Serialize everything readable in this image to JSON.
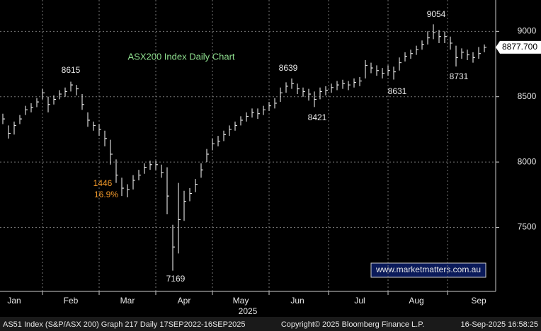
{
  "chart_data": {
    "type": "ohlc",
    "title": "ASX200 Index Daily Chart",
    "categories": [
      null,
      null,
      "Jan",
      null,
      null,
      null,
      null,
      null,
      null,
      null,
      null,
      null,
      "Feb",
      null,
      null,
      null,
      null,
      null,
      null,
      null,
      null,
      null,
      "Mar",
      null,
      null,
      null,
      null,
      null,
      null,
      null,
      null,
      null,
      "Apr",
      null,
      null,
      null,
      null,
      null,
      null,
      null,
      null,
      null,
      "May",
      null,
      null,
      null,
      null,
      null,
      null,
      null,
      null,
      null,
      "Jun",
      null,
      null,
      null,
      null,
      null,
      null,
      null,
      null,
      null,
      null,
      "Jul",
      null,
      null,
      null,
      null,
      null,
      null,
      null,
      null,
      null,
      "Aug",
      null,
      null,
      null,
      null,
      null,
      null,
      null,
      null,
      null,
      null,
      "Sep",
      null
    ],
    "x_axis_year": "2025",
    "high": [
      8370,
      8280,
      8310,
      8360,
      8430,
      8450,
      8490,
      8560,
      8500,
      8510,
      8550,
      8570,
      8615,
      8590,
      8520,
      8380,
      8310,
      8290,
      8240,
      8170,
      8020,
      7880,
      7830,
      7900,
      7940,
      7990,
      8010,
      8010,
      7980,
      7960,
      7520,
      7840,
      7780,
      7800,
      7870,
      7990,
      8100,
      8180,
      8200,
      8240,
      8280,
      8310,
      8350,
      8380,
      8410,
      8410,
      8430,
      8460,
      8490,
      8570,
      8610,
      8639,
      8600,
      8570,
      8560,
      8540,
      8570,
      8580,
      8600,
      8620,
      8630,
      8620,
      8640,
      8650,
      8780,
      8760,
      8740,
      8720,
      8740,
      8730,
      8800,
      8840,
      8860,
      8890,
      8930,
      9000,
      9054,
      9010,
      9000,
      8960,
      8890,
      8870,
      8860,
      8840,
      8880,
      8900
    ],
    "low": [
      8290,
      8180,
      8210,
      8290,
      8360,
      8380,
      8420,
      8480,
      8380,
      8440,
      8480,
      8500,
      8540,
      8510,
      8400,
      8270,
      8240,
      8200,
      8120,
      7980,
      7840,
      7740,
      7730,
      7790,
      7860,
      7910,
      7940,
      7940,
      7880,
      7600,
      7169,
      7300,
      7550,
      7700,
      7770,
      7880,
      8000,
      8090,
      8120,
      8160,
      8200,
      8240,
      8280,
      8310,
      8340,
      8330,
      8360,
      8390,
      8410,
      8460,
      8530,
      8560,
      8520,
      8500,
      8470,
      8421,
      8480,
      8510,
      8530,
      8550,
      8560,
      8550,
      8570,
      8580,
      8640,
      8680,
      8660,
      8640,
      8660,
      8631,
      8700,
      8770,
      8790,
      8820,
      8860,
      8900,
      8940,
      8910,
      8910,
      8860,
      8731,
      8790,
      8780,
      8760,
      8790,
      8840
    ],
    "close": [
      8330,
      8220,
      8280,
      8330,
      8400,
      8420,
      8460,
      8530,
      8440,
      8480,
      8520,
      8540,
      8590,
      8560,
      8440,
      8320,
      8280,
      8250,
      8180,
      8060,
      7900,
      7800,
      7790,
      7860,
      7900,
      7960,
      7980,
      7980,
      7920,
      7740,
      7350,
      7560,
      7700,
      7760,
      7830,
      7940,
      8060,
      8140,
      8160,
      8210,
      8250,
      8280,
      8320,
      8350,
      8380,
      8370,
      8400,
      8430,
      8450,
      8530,
      8580,
      8600,
      8560,
      8540,
      8520,
      8480,
      8540,
      8550,
      8570,
      8590,
      8600,
      8590,
      8610,
      8620,
      8740,
      8720,
      8700,
      8680,
      8700,
      8690,
      8760,
      8810,
      8830,
      8860,
      8900,
      8950,
      8990,
      8960,
      8960,
      8910,
      8800,
      8840,
      8820,
      8800,
      8830,
      8877.7
    ],
    "last_value_label": "8877.700",
    "color": "#ffffff",
    "ylim": [
      7010,
      9240
    ],
    "yticks": [
      7500,
      8000,
      8500,
      9000
    ],
    "grid": true,
    "annotations": [
      "8615",
      "1446",
      "16.9%",
      "7169",
      "8639",
      "8421",
      "8631",
      "9054",
      "8731"
    ],
    "website": "www.marketmatters.com.au",
    "footer": [
      "AS51 Index (S&P/ASX 200) Graph 217  Daily 17SEP2022-16SEP2025",
      "Copyright© 2025 Bloomberg Finance L.P.",
      "16-Sep-2025 16:58:25"
    ]
  }
}
